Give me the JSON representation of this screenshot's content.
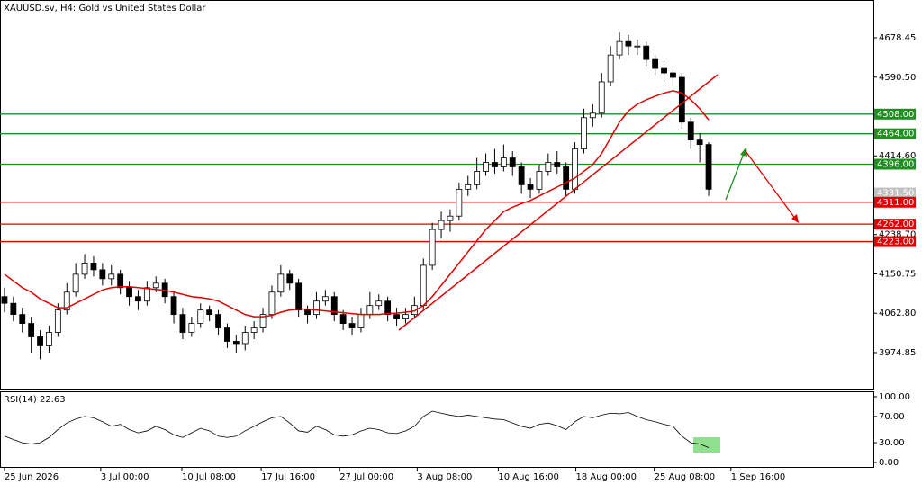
{
  "chart_data": [
    {
      "type": "candlestick",
      "title": "XAUUSD.sv, H4:  Gold vs United States Dollar",
      "open": [
        4100,
        4085,
        4060,
        4040,
        4010,
        3990,
        4020,
        4070,
        4110,
        4150,
        4175,
        4160,
        4140,
        4150,
        4120,
        4100,
        4090,
        4120,
        4130,
        4100,
        4060,
        4020,
        4040,
        4070,
        4060,
        4030,
        4000,
        3995,
        4020,
        4030,
        4060,
        4110,
        4150,
        4130,
        4070,
        4060,
        4090,
        4100,
        4060,
        4040,
        4030,
        4060,
        4080,
        4090,
        4060,
        4050,
        4060,
        4080,
        4170,
        4250,
        4270,
        4280,
        4340,
        4350,
        4380,
        4400,
        4390,
        4410,
        4390,
        4350,
        4340,
        4380,
        4400,
        4390,
        4340,
        4430,
        4500,
        4510,
        4580,
        4640,
        4670,
        4660,
        4660,
        4630,
        4610,
        4600,
        4590,
        4490,
        4450,
        4440
      ],
      "high": [
        4120,
        4100,
        4075,
        4055,
        4025,
        4035,
        4085,
        4130,
        4175,
        4195,
        4190,
        4175,
        4170,
        4160,
        4135,
        4115,
        4135,
        4145,
        4140,
        4110,
        4075,
        4055,
        4085,
        4080,
        4070,
        4040,
        4015,
        4035,
        4045,
        4075,
        4125,
        4170,
        4160,
        4140,
        4080,
        4110,
        4115,
        4110,
        4070,
        4055,
        4075,
        4110,
        4105,
        4100,
        4075,
        4075,
        4100,
        4185,
        4265,
        4290,
        4295,
        4355,
        4370,
        4410,
        4420,
        4430,
        4440,
        4425,
        4400,
        4365,
        4395,
        4420,
        4425,
        4400,
        4445,
        4520,
        4530,
        4600,
        4660,
        4690,
        4685,
        4675,
        4670,
        4640,
        4620,
        4615,
        4600,
        4500,
        4465,
        4445
      ],
      "low": [
        4065,
        4045,
        4020,
        3975,
        3960,
        3975,
        4010,
        4060,
        4100,
        4140,
        4145,
        4125,
        4125,
        4105,
        4080,
        4070,
        4080,
        4110,
        4085,
        4040,
        4005,
        4010,
        4030,
        4045,
        4015,
        3985,
        3975,
        3980,
        4005,
        4020,
        4050,
        4100,
        4115,
        4055,
        4040,
        4050,
        4080,
        4045,
        4025,
        4015,
        4020,
        4050,
        4070,
        4045,
        4035,
        4040,
        4050,
        4070,
        4160,
        4230,
        4245,
        4270,
        4325,
        4340,
        4370,
        4375,
        4380,
        4370,
        4330,
        4320,
        4330,
        4370,
        4375,
        4325,
        4330,
        4420,
        4480,
        4500,
        4570,
        4630,
        4640,
        4640,
        4615,
        4595,
        4580,
        4570,
        4475,
        4430,
        4400,
        4325
      ],
      "close": [
        4085,
        4060,
        4040,
        4010,
        3990,
        4020,
        4070,
        4110,
        4150,
        4175,
        4160,
        4140,
        4150,
        4120,
        4100,
        4090,
        4120,
        4130,
        4100,
        4060,
        4020,
        4040,
        4070,
        4060,
        4030,
        4000,
        3995,
        4020,
        4030,
        4060,
        4110,
        4150,
        4130,
        4070,
        4060,
        4090,
        4100,
        4060,
        4040,
        4030,
        4060,
        4080,
        4090,
        4060,
        4050,
        4060,
        4080,
        4170,
        4250,
        4270,
        4280,
        4340,
        4350,
        4380,
        4400,
        4390,
        4410,
        4390,
        4350,
        4340,
        4380,
        4400,
        4390,
        4340,
        4430,
        4500,
        4510,
        4580,
        4640,
        4670,
        4660,
        4660,
        4630,
        4610,
        4600,
        4590,
        4490,
        4450,
        4440,
        4340
      ],
      "ma_values": [
        4150,
        4135,
        4120,
        4110,
        4095,
        4085,
        4075,
        4075,
        4085,
        4095,
        4105,
        4115,
        4120,
        4122,
        4122,
        4120,
        4118,
        4116,
        4114,
        4110,
        4105,
        4100,
        4098,
        4095,
        4090,
        4080,
        4070,
        4060,
        4055,
        4055,
        4058,
        4065,
        4070,
        4072,
        4072,
        4070,
        4068,
        4066,
        4064,
        4062,
        4060,
        4060,
        4060,
        4062,
        4063,
        4065,
        4068,
        4080,
        4100,
        4125,
        4150,
        4175,
        4200,
        4225,
        4250,
        4270,
        4290,
        4300,
        4308,
        4315,
        4325,
        4335,
        4345,
        4355,
        4365,
        4380,
        4395,
        4420,
        4455,
        4490,
        4515,
        4530,
        4540,
        4548,
        4555,
        4560,
        4555,
        4540,
        4520,
        4495
      ],
      "ma_color": "#e00000",
      "up_color": "#ffffff",
      "down_color": "#000000",
      "ylim": [
        3894.4,
        4762.9
      ],
      "yticks": [
        4678.45,
        {
          "value": 4590.5,
          "label": "4590.50"
        },
        {
          "value": 4414.6,
          "label": "4414.60"
        },
        {
          "value": 4238.7,
          "label": "4238.70"
        },
        4150.75,
        {
          "value": 4062.8,
          "label": "4062.80"
        },
        3974.85
      ],
      "current_price": {
        "value": 4331.5,
        "label": "4331.50"
      },
      "levels": [
        {
          "value": 4508,
          "label": "4508.00",
          "color": "#1f8f1f"
        },
        {
          "value": 4464,
          "label": "4464.00",
          "color": "#1f8f1f"
        },
        {
          "value": 4396,
          "label": "4396.00",
          "color": "#1f8f1f"
        },
        {
          "value": 4311,
          "label": "4311.00",
          "color": "#e00000"
        },
        {
          "value": 4262,
          "label": "4262.00",
          "color": "#e00000"
        },
        {
          "value": 4223,
          "label": "4223.00",
          "color": "#e00000"
        }
      ],
      "xticks": [
        {
          "value": 0,
          "label": "25 Jun 2026"
        },
        {
          "value": 10.8,
          "label": "3 Jul 00:00"
        },
        {
          "value": 19.9,
          "label": "10 Jul 08:00"
        },
        {
          "value": 28.8,
          "label": "17 Jul 16:00"
        },
        {
          "value": 37.6,
          "label": "27 Jul 00:00"
        },
        {
          "value": 46.3,
          "label": "3 Aug 08:00"
        },
        {
          "value": 55.4,
          "label": "10 Aug 16:00"
        },
        {
          "value": 64.1,
          "label": "18 Aug 00:00"
        },
        {
          "value": 72.9,
          "label": "25 Aug 08:00"
        },
        {
          "value": 81.5,
          "label": "1 Sep 16:00"
        }
      ]
    },
    {
      "type": "line",
      "title": "RSI(14) 22.63",
      "color": "#000000",
      "values": [
        40,
        35,
        30,
        28,
        30,
        38,
        50,
        60,
        66,
        70,
        68,
        62,
        55,
        58,
        50,
        45,
        48,
        55,
        50,
        42,
        38,
        45,
        52,
        48,
        40,
        38,
        40,
        48,
        55,
        62,
        68,
        70,
        60,
        48,
        46,
        55,
        50,
        42,
        40,
        42,
        48,
        52,
        50,
        45,
        44,
        48,
        55,
        70,
        78,
        75,
        72,
        70,
        72,
        70,
        68,
        66,
        65,
        60,
        55,
        52,
        58,
        60,
        56,
        50,
        62,
        70,
        68,
        72,
        75,
        74,
        76,
        70,
        65,
        62,
        58,
        55,
        40,
        30,
        28,
        22.63
      ],
      "ylim": [
        -8.2,
        106.8
      ],
      "yticks": [
        {
          "value": 100,
          "label": "100.00"
        },
        {
          "value": 70,
          "label": "70.00"
        },
        {
          "value": 30,
          "label": "30.00"
        },
        {
          "value": 0,
          "label": "0.00"
        }
      ]
    }
  ]
}
